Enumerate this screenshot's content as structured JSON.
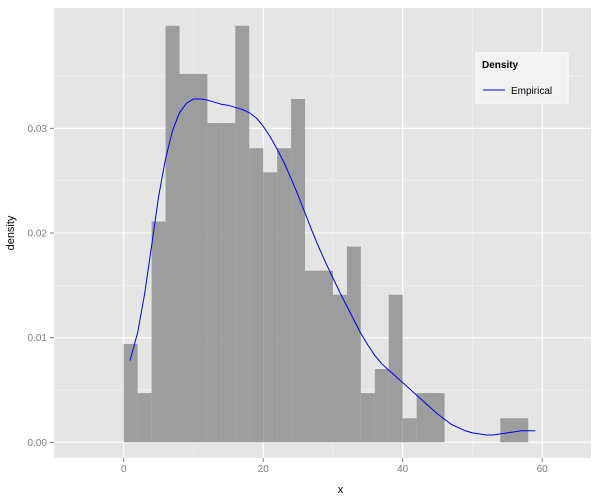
{
  "chart_data": {
    "type": "histogram",
    "xlabel": "x",
    "ylabel": "density",
    "xlim": [
      -10,
      67
    ],
    "ylim": [
      -0.0015,
      0.0415
    ],
    "x_ticks": [
      0,
      20,
      40,
      60
    ],
    "x_tick_labels": [
      "0",
      "20",
      "40",
      "60"
    ],
    "y_ticks": [
      0,
      0.01,
      0.02,
      0.03
    ],
    "y_tick_labels": [
      "0.00",
      "0.01",
      "0.02",
      "0.03"
    ],
    "grid": true,
    "bin_width": 2,
    "bins": [
      {
        "x0": 0,
        "x1": 2,
        "density": 0.0094
      },
      {
        "x0": 2,
        "x1": 4,
        "density": 0.0047
      },
      {
        "x0": 4,
        "x1": 6,
        "density": 0.0211
      },
      {
        "x0": 6,
        "x1": 8,
        "density": 0.0398
      },
      {
        "x0": 8,
        "x1": 10,
        "density": 0.0352
      },
      {
        "x0": 10,
        "x1": 12,
        "density": 0.0352
      },
      {
        "x0": 12,
        "x1": 14,
        "density": 0.0305
      },
      {
        "x0": 14,
        "x1": 16,
        "density": 0.0305
      },
      {
        "x0": 16,
        "x1": 18,
        "density": 0.0398
      },
      {
        "x0": 18,
        "x1": 20,
        "density": 0.0281
      },
      {
        "x0": 20,
        "x1": 22,
        "density": 0.0258
      },
      {
        "x0": 22,
        "x1": 24,
        "density": 0.0281
      },
      {
        "x0": 24,
        "x1": 26,
        "density": 0.0328
      },
      {
        "x0": 26,
        "x1": 28,
        "density": 0.0164
      },
      {
        "x0": 28,
        "x1": 30,
        "density": 0.0164
      },
      {
        "x0": 30,
        "x1": 32,
        "density": 0.0141
      },
      {
        "x0": 32,
        "x1": 34,
        "density": 0.0187
      },
      {
        "x0": 34,
        "x1": 36,
        "density": 0.0047
      },
      {
        "x0": 36,
        "x1": 38,
        "density": 0.007
      },
      {
        "x0": 38,
        "x1": 40,
        "density": 0.0141
      },
      {
        "x0": 40,
        "x1": 42,
        "density": 0.0023
      },
      {
        "x0": 42,
        "x1": 46,
        "density": 0.0047
      },
      {
        "x0": 54,
        "x1": 58,
        "density": 0.0023
      }
    ],
    "series": [
      {
        "name": "Empirical",
        "type": "line",
        "color": "#0000ff",
        "x": [
          0.9,
          2,
          3,
          4,
          5,
          6,
          7,
          8,
          9,
          10,
          11,
          12,
          13,
          14,
          15,
          16,
          17,
          18,
          19,
          20,
          21,
          22,
          23,
          24,
          25,
          26,
          27,
          28,
          29,
          30,
          31,
          32,
          33,
          34,
          35,
          36,
          37,
          38,
          39,
          40,
          41,
          42,
          43,
          44,
          45,
          46,
          47,
          48,
          49,
          50,
          51,
          52,
          53,
          54,
          55,
          56,
          57,
          58,
          59
        ],
        "y": [
          0.0078,
          0.0105,
          0.0142,
          0.0188,
          0.0235,
          0.0271,
          0.0298,
          0.0315,
          0.0324,
          0.0328,
          0.0328,
          0.0327,
          0.0325,
          0.0323,
          0.0322,
          0.032,
          0.0318,
          0.0315,
          0.031,
          0.0302,
          0.0292,
          0.028,
          0.0267,
          0.0252,
          0.0236,
          0.0219,
          0.0202,
          0.0186,
          0.0171,
          0.0157,
          0.0143,
          0.013,
          0.0117,
          0.0104,
          0.0093,
          0.0083,
          0.0075,
          0.0069,
          0.0063,
          0.0057,
          0.0051,
          0.0045,
          0.0039,
          0.0033,
          0.0027,
          0.0022,
          0.0017,
          0.0014,
          0.0011,
          0.0009,
          0.0008,
          0.0007,
          0.0007,
          0.0008,
          0.0009,
          0.001,
          0.0011,
          0.0011,
          0.0011
        ]
      }
    ],
    "colors": {
      "panel_background": "#e5e5e5",
      "grid_major": "#ffffff",
      "bar_fill": "#999999",
      "line": "#0000ff",
      "legend_background": "#f2f2f2"
    },
    "legend": {
      "title": "Density",
      "position": "top-right",
      "entries": [
        {
          "label": "Empirical",
          "color": "#0000ff"
        }
      ]
    }
  }
}
